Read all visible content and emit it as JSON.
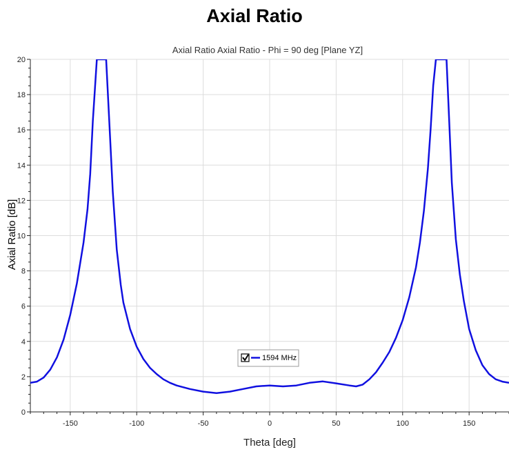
{
  "page_title": "Axial Ratio",
  "chart_data": {
    "type": "line",
    "title": "Axial Ratio Axial Ratio - Phi = 90 deg [Plane YZ]",
    "xlabel": "Theta [deg]",
    "ylabel": "Axial Ratio [dB]",
    "xlim": [
      -180,
      180
    ],
    "ylim": [
      0,
      20
    ],
    "xticks": [
      -150,
      -100,
      -50,
      0,
      50,
      100,
      150
    ],
    "yticks": [
      0,
      2,
      4,
      6,
      8,
      10,
      12,
      14,
      16,
      18,
      20
    ],
    "grid": true,
    "legend_position": "center-bottom",
    "series": [
      {
        "name": "1594 MHz",
        "color": "#1010e0",
        "checked": true,
        "x": [
          -180,
          -175,
          -170,
          -165,
          -160,
          -155,
          -150,
          -145,
          -140,
          -137,
          -135,
          -133,
          -130,
          -128,
          -125,
          -123,
          -120,
          -118,
          -115,
          -112,
          -110,
          -105,
          -100,
          -95,
          -90,
          -85,
          -80,
          -75,
          -70,
          -60,
          -50,
          -40,
          -30,
          -20,
          -10,
          0,
          10,
          20,
          30,
          40,
          50,
          60,
          65,
          70,
          75,
          80,
          85,
          90,
          95,
          100,
          105,
          110,
          113,
          116,
          119,
          121,
          123,
          125,
          128,
          131,
          133,
          135,
          137,
          140,
          143,
          146,
          150,
          155,
          160,
          165,
          170,
          175,
          180
        ],
        "y": [
          1.65,
          1.72,
          1.95,
          2.4,
          3.1,
          4.1,
          5.5,
          7.3,
          9.6,
          11.5,
          13.5,
          16.5,
          20,
          20,
          20,
          20,
          15.5,
          12.5,
          9.2,
          7.2,
          6.2,
          4.7,
          3.7,
          3.0,
          2.5,
          2.15,
          1.85,
          1.65,
          1.5,
          1.3,
          1.15,
          1.07,
          1.15,
          1.3,
          1.45,
          1.5,
          1.45,
          1.5,
          1.65,
          1.73,
          1.62,
          1.5,
          1.45,
          1.55,
          1.85,
          2.25,
          2.8,
          3.4,
          4.2,
          5.2,
          6.5,
          8.2,
          9.6,
          11.4,
          13.8,
          16.0,
          18.5,
          20,
          20,
          20,
          20,
          16.5,
          13.0,
          9.8,
          7.8,
          6.3,
          4.7,
          3.5,
          2.65,
          2.15,
          1.85,
          1.72,
          1.65
        ]
      }
    ]
  }
}
